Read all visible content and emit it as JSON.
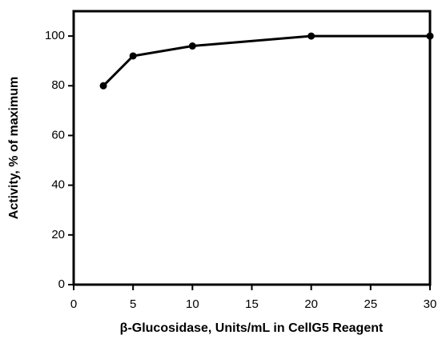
{
  "chart_data": {
    "type": "line",
    "x_label": "β-Glucosidase,  Units/mL in CellG5 Reagent",
    "y_label": "Activity, % of maximum",
    "x": [
      2.5,
      5,
      10,
      20,
      30
    ],
    "values": [
      80,
      92,
      96,
      100,
      100
    ],
    "color": "#000000",
    "xlim": [
      0,
      30
    ],
    "xticks": [
      0,
      5,
      10,
      15,
      20,
      25,
      30
    ],
    "ylim": [
      0,
      110
    ],
    "yticks": [
      0,
      20,
      40,
      60,
      80,
      100
    ]
  }
}
